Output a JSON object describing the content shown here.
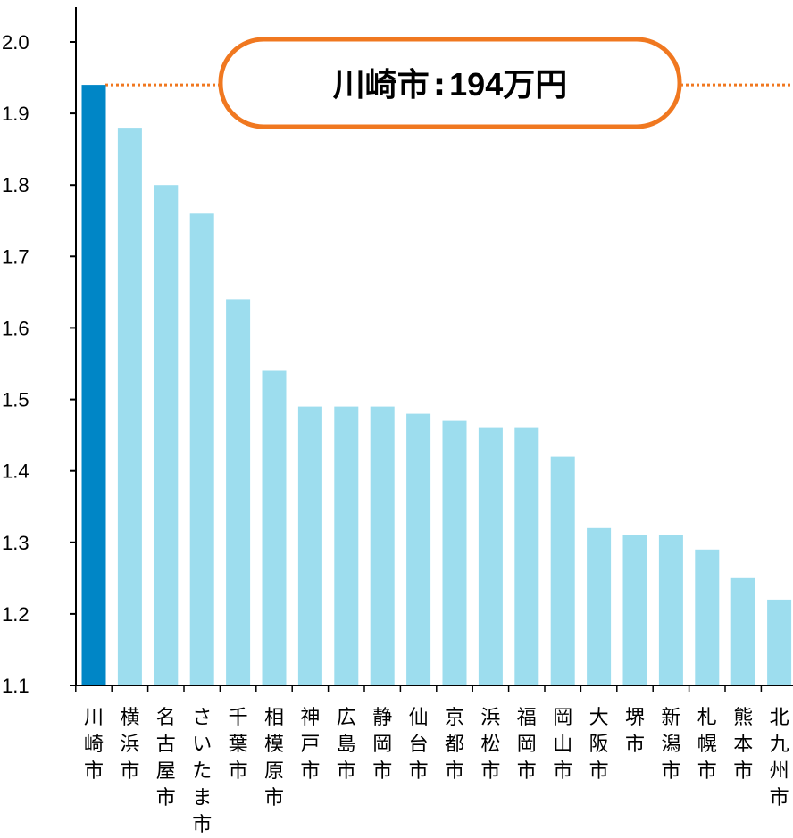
{
  "chart_data": {
    "type": "bar",
    "title": "",
    "xlabel": "",
    "ylabel": "",
    "ylim": [
      1.1,
      2.0
    ],
    "yticks": [
      "1.1",
      "1.2",
      "1.3",
      "1.4",
      "1.5",
      "1.6",
      "1.7",
      "1.8",
      "1.9",
      "2.0"
    ],
    "grid": false,
    "legend": "none",
    "categories": [
      "川崎市",
      "横浜市",
      "名古屋市",
      "さいたま市",
      "千葉市",
      "相模原市",
      "神戸市",
      "広島市",
      "静岡市",
      "仙台市",
      "京都市",
      "浜松市",
      "福岡市",
      "岡山市",
      "大阪市",
      "堺市",
      "新潟市",
      "札幌市",
      "熊本市",
      "北九州市"
    ],
    "values": [
      1.94,
      1.88,
      1.8,
      1.76,
      1.64,
      1.54,
      1.49,
      1.49,
      1.49,
      1.48,
      1.47,
      1.46,
      1.46,
      1.42,
      1.32,
      1.31,
      1.31,
      1.29,
      1.25,
      1.22
    ],
    "highlight_index": 0,
    "colors": {
      "highlight": "#0086C6",
      "bar": "#9DDDEE",
      "reference_line": "#F07820",
      "callout_border": "#F07820",
      "axis": "#000000"
    },
    "reference_value": 1.94,
    "annotation": {
      "city": "川崎市",
      "separator": ":",
      "amount": "194",
      "unit": "万円"
    }
  }
}
